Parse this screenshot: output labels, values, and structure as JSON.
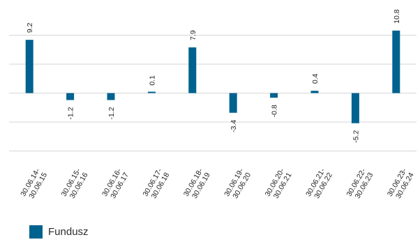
{
  "chart_data": {
    "type": "bar",
    "categories": [
      "30.06.14-\n30.06.15",
      "30.06.15-\n30.06.16",
      "30.06.16-\n30.06.17",
      "30.06.17-\n30.06.18",
      "30.06.18-\n30.06.19",
      "30.06.19-\n30.06.20",
      "30.06.20-\n30.06.21",
      "30.06.21-\n30.06.22",
      "30.06.22-\n30.06.23",
      "30.06.23-\n30.06.24"
    ],
    "series": [
      {
        "name": "Fundusz",
        "values": [
          9.2,
          -1.2,
          -1.2,
          0.1,
          7.9,
          -3.4,
          -0.8,
          0.4,
          -5.2,
          10.8
        ],
        "labels": [
          "9.2",
          "-1.2",
          "-1.2",
          "0.1",
          "7.9",
          "-3.4",
          "-0.8",
          "0.4",
          "-5.2",
          "10.8"
        ],
        "color": "#00628f"
      }
    ],
    "ylim": [
      -10,
      15
    ],
    "yticks": [
      -10,
      -5,
      0,
      5,
      10
    ],
    "grid": true,
    "legend_position": "bottom-left"
  }
}
